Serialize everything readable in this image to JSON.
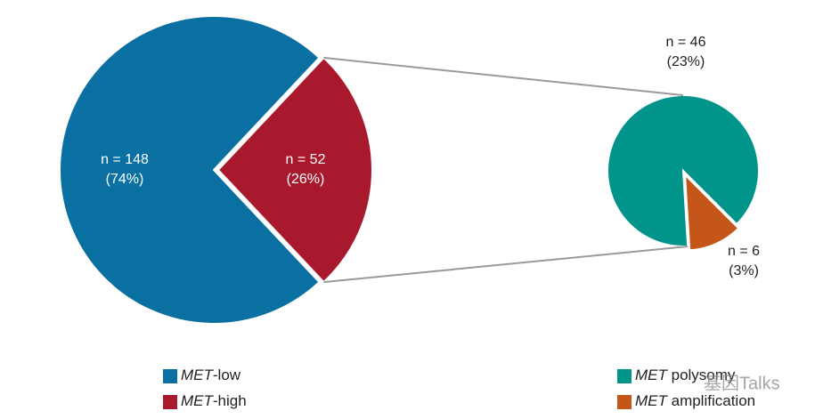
{
  "chart_data": [
    {
      "type": "pie",
      "categories": [
        "MET-low",
        "MET-high"
      ],
      "values": [
        74,
        26
      ],
      "value_labels": [
        "(74%)",
        "(26%)"
      ],
      "counts": [
        148,
        52
      ],
      "count_labels": [
        "n = 148",
        "n = 52"
      ],
      "colors": [
        "#0a6fa1",
        "#a8192e"
      ]
    },
    {
      "type": "pie",
      "categories": [
        "MET polysomy",
        "MET amplification"
      ],
      "values": [
        23,
        3
      ],
      "value_labels": [
        "(23%)",
        "(3%)"
      ],
      "counts": [
        46,
        6
      ],
      "count_labels": [
        "n = 46",
        "n = 6"
      ],
      "colors": [
        "#00948a",
        "#c5561a"
      ]
    }
  ],
  "watermark": "基因Talks"
}
